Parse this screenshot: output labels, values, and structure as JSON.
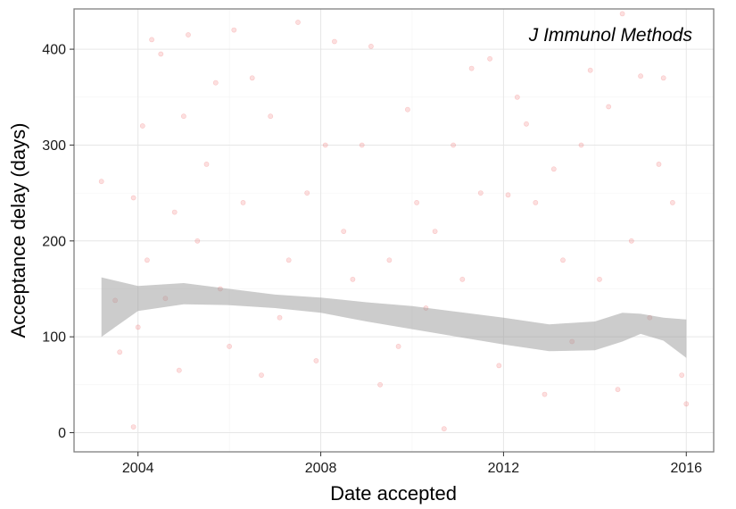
{
  "chart_data": {
    "type": "scatter",
    "annotation": "J Immunol Methods",
    "xlabel": "Date accepted",
    "ylabel": "Acceptance delay (days)",
    "xlim": [
      2002.6,
      2016.6
    ],
    "ylim": [
      -20,
      442
    ],
    "x_ticks": [
      2004,
      2008,
      2012,
      2016
    ],
    "x_tick_labels": [
      "2004",
      "2008",
      "2012",
      "2016"
    ],
    "y_ticks": [
      0,
      100,
      200,
      300,
      400
    ],
    "y_tick_labels": [
      "0",
      "100",
      "200",
      "300",
      "400"
    ],
    "grid": true,
    "point_color": "#f0504f",
    "point_opacity": 0.18,
    "smooth_band_color": "#999999",
    "smooth_band_opacity": 0.5,
    "smooth_x": [
      2003.2,
      2004.0,
      2005.0,
      2006.0,
      2007.0,
      2008.0,
      2009.0,
      2010.0,
      2011.0,
      2012.0,
      2013.0,
      2014.0,
      2014.6,
      2015.0,
      2015.5,
      2016.0
    ],
    "smooth_y": [
      130,
      140,
      145,
      141,
      137,
      133,
      126,
      120,
      113,
      106,
      99,
      101,
      112,
      113,
      107,
      95
    ],
    "smooth_lo": [
      100,
      127,
      134,
      133,
      130,
      125,
      116,
      108,
      100,
      92,
      85,
      86,
      95,
      103,
      96,
      78
    ],
    "smooth_hi": [
      162,
      153,
      156,
      150,
      144,
      141,
      136,
      132,
      126,
      120,
      113,
      116,
      125,
      124,
      120,
      118
    ],
    "points": [
      [
        2003.2,
        262
      ],
      [
        2003.5,
        138
      ],
      [
        2003.6,
        84
      ],
      [
        2003.9,
        245
      ],
      [
        2003.9,
        6
      ],
      [
        2004.0,
        110
      ],
      [
        2004.1,
        320
      ],
      [
        2004.2,
        180
      ],
      [
        2004.3,
        410
      ],
      [
        2004.5,
        395
      ],
      [
        2004.6,
        140
      ],
      [
        2004.8,
        230
      ],
      [
        2004.9,
        65
      ],
      [
        2005.0,
        330
      ],
      [
        2005.1,
        415
      ],
      [
        2005.3,
        200
      ],
      [
        2005.5,
        280
      ],
      [
        2005.7,
        365
      ],
      [
        2005.8,
        150
      ],
      [
        2006.0,
        90
      ],
      [
        2006.1,
        420
      ],
      [
        2006.3,
        240
      ],
      [
        2006.5,
        370
      ],
      [
        2006.7,
        60
      ],
      [
        2006.9,
        330
      ],
      [
        2007.1,
        120
      ],
      [
        2007.3,
        180
      ],
      [
        2007.5,
        428
      ],
      [
        2007.7,
        250
      ],
      [
        2007.9,
        75
      ],
      [
        2008.1,
        300
      ],
      [
        2008.3,
        408
      ],
      [
        2008.5,
        210
      ],
      [
        2008.7,
        160
      ],
      [
        2008.9,
        300
      ],
      [
        2009.1,
        403
      ],
      [
        2009.3,
        50
      ],
      [
        2009.5,
        180
      ],
      [
        2009.7,
        90
      ],
      [
        2009.9,
        337
      ],
      [
        2010.1,
        240
      ],
      [
        2010.3,
        130
      ],
      [
        2010.5,
        210
      ],
      [
        2010.7,
        4
      ],
      [
        2010.9,
        300
      ],
      [
        2011.1,
        160
      ],
      [
        2011.3,
        380
      ],
      [
        2011.5,
        250
      ],
      [
        2011.7,
        390
      ],
      [
        2011.9,
        70
      ],
      [
        2012.1,
        248
      ],
      [
        2012.3,
        350
      ],
      [
        2012.5,
        322
      ],
      [
        2012.7,
        240
      ],
      [
        2012.9,
        40
      ],
      [
        2013.1,
        275
      ],
      [
        2013.3,
        180
      ],
      [
        2013.5,
        95
      ],
      [
        2013.7,
        300
      ],
      [
        2013.9,
        378
      ],
      [
        2014.1,
        160
      ],
      [
        2014.3,
        340
      ],
      [
        2014.5,
        45
      ],
      [
        2014.6,
        437
      ],
      [
        2014.8,
        200
      ],
      [
        2015.0,
        372
      ],
      [
        2015.2,
        120
      ],
      [
        2015.4,
        280
      ],
      [
        2015.5,
        370
      ],
      [
        2015.7,
        240
      ],
      [
        2015.9,
        60
      ],
      [
        2016.0,
        30
      ]
    ]
  }
}
